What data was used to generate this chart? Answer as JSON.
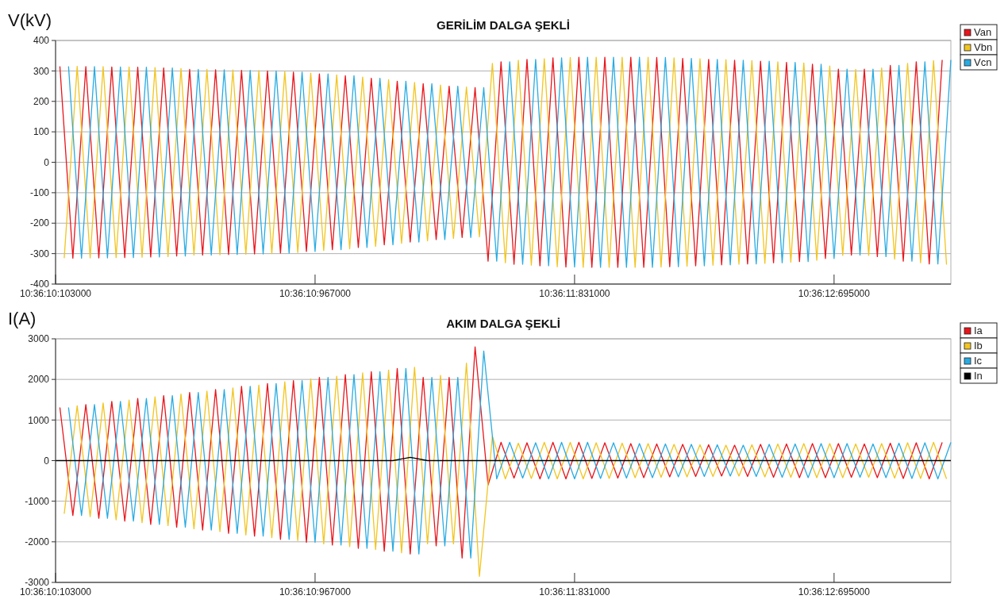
{
  "chart_data": [
    {
      "type": "line",
      "title": "GERİLİM DALGA ŞEKLİ",
      "ylabel": "V(kV)",
      "ylim": [
        -400,
        400
      ],
      "yticks": [
        -400,
        -300,
        -200,
        -100,
        0,
        100,
        200,
        300,
        400
      ],
      "grid": "y",
      "legend": "top right",
      "marker": "none",
      "line_style": "solid",
      "categories": [
        "10:36:10:103000",
        null,
        null,
        null,
        null,
        null,
        null,
        null,
        null,
        null,
        null,
        null,
        null,
        null,
        null,
        null,
        null,
        null,
        null,
        null,
        null,
        null,
        null,
        null,
        null,
        null,
        null,
        null,
        null,
        null,
        null,
        null,
        null,
        null,
        null,
        null,
        null,
        null,
        null,
        null,
        null,
        null,
        null,
        null,
        null,
        null,
        null,
        null,
        null,
        null,
        null,
        null,
        null,
        null,
        null,
        null,
        null,
        null,
        null,
        null,
        "10:36:10:967000",
        null,
        null,
        null,
        null,
        null,
        null,
        null,
        null,
        null,
        null,
        null,
        null,
        null,
        null,
        null,
        null,
        null,
        null,
        null,
        null,
        null,
        null,
        null,
        null,
        null,
        null,
        null,
        null,
        null,
        null,
        null,
        null,
        null,
        null,
        null,
        null,
        null,
        null,
        null,
        null,
        null,
        null,
        null,
        null,
        null,
        null,
        null,
        null,
        null,
        null,
        null,
        null,
        null,
        null,
        null,
        null,
        null,
        null,
        null,
        "10:36:11:831000",
        null,
        null,
        null,
        null,
        null,
        null,
        null,
        null,
        null,
        null,
        null,
        null,
        null,
        null,
        null,
        null,
        null,
        null,
        null,
        null,
        null,
        null,
        null,
        null,
        null,
        null,
        null,
        null,
        null,
        null,
        null,
        null,
        null,
        null,
        null,
        null,
        null,
        null,
        null,
        null,
        null,
        null,
        null,
        null,
        null,
        null,
        null,
        null,
        null,
        null,
        null,
        null,
        null,
        null,
        null,
        null,
        null,
        null,
        null,
        "10:36:12:695000",
        null,
        null,
        null,
        null,
        null,
        null,
        null,
        null,
        null,
        null,
        null,
        null,
        null,
        null,
        null,
        null,
        null,
        null,
        null,
        null,
        null,
        null,
        null,
        null,
        null,
        null,
        null
      ],
      "series": [
        {
          "name": "Van",
          "color": "#e8151b",
          "values": [
            null,
            315,
            null,
            null,
            -315,
            null,
            null,
            314,
            null,
            null,
            -314,
            null,
            null,
            313,
            null,
            null,
            -313,
            null,
            null,
            312,
            null,
            null,
            -311,
            null,
            null,
            310,
            null,
            null,
            -308,
            null,
            null,
            305,
            null,
            null,
            -305,
            null,
            null,
            304,
            null,
            null,
            -303,
            null,
            null,
            302,
            null,
            null,
            -301,
            null,
            null,
            300,
            null,
            null,
            -298,
            null,
            null,
            296,
            null,
            null,
            -293,
            null,
            null,
            290,
            null,
            null,
            -287,
            null,
            null,
            284,
            null,
            null,
            -280,
            null,
            null,
            276,
            null,
            null,
            -271,
            null,
            null,
            266,
            null,
            null,
            -262,
            null,
            null,
            258,
            null,
            null,
            -254,
            null,
            null,
            250,
            null,
            null,
            -247,
            null,
            null,
            245,
            null,
            null,
            -325,
            null,
            null,
            330,
            null,
            null,
            -335,
            null,
            null,
            338,
            null,
            null,
            -340,
            null,
            null,
            343,
            null,
            null,
            -344,
            null,
            null,
            345,
            null,
            null,
            -345,
            null,
            null,
            345,
            null,
            null,
            -345,
            null,
            null,
            345,
            null,
            null,
            -345,
            null,
            null,
            344,
            null,
            null,
            -343,
            null,
            null,
            341,
            null,
            null,
            -340,
            null,
            null,
            338,
            null,
            null,
            -337,
            null,
            null,
            335,
            null,
            null,
            -334,
            null,
            null,
            332,
            null,
            null,
            -330,
            null,
            null,
            328,
            null,
            null,
            -326,
            null,
            null,
            322,
            null,
            null,
            -316,
            null,
            null,
            306,
            null,
            null,
            -305,
            null,
            null,
            306,
            null,
            null,
            -310,
            null,
            null,
            318,
            null,
            null,
            -325,
            null,
            null,
            330,
            null,
            null,
            -334,
            null,
            null,
            336,
            null,
            null
          ]
        },
        {
          "name": "Vbn",
          "color": "#f2c521",
          "values": [
            null,
            null,
            -315,
            null,
            null,
            315,
            null,
            null,
            -314,
            null,
            null,
            314,
            null,
            null,
            -313,
            null,
            null,
            313,
            null,
            null,
            -312,
            null,
            null,
            311,
            null,
            null,
            -310,
            null,
            null,
            308,
            null,
            null,
            -305,
            null,
            null,
            305,
            null,
            null,
            -304,
            null,
            null,
            303,
            null,
            null,
            -302,
            null,
            null,
            301,
            null,
            null,
            -300,
            null,
            null,
            298,
            null,
            null,
            -296,
            null,
            null,
            293,
            null,
            null,
            -290,
            null,
            null,
            287,
            null,
            null,
            -284,
            null,
            null,
            280,
            null,
            null,
            -276,
            null,
            null,
            271,
            null,
            null,
            -266,
            null,
            null,
            262,
            null,
            null,
            -258,
            null,
            null,
            254,
            null,
            null,
            -250,
            null,
            null,
            247,
            null,
            null,
            -245,
            null,
            null,
            325,
            null,
            null,
            -330,
            null,
            null,
            335,
            null,
            null,
            -338,
            null,
            null,
            340,
            null,
            null,
            -343,
            null,
            null,
            344,
            null,
            null,
            -345,
            null,
            null,
            345,
            null,
            null,
            -345,
            null,
            null,
            345,
            null,
            null,
            -345,
            null,
            null,
            345,
            null,
            null,
            -344,
            null,
            null,
            343,
            null,
            null,
            -341,
            null,
            null,
            340,
            null,
            null,
            -338,
            null,
            null,
            337,
            null,
            null,
            -335,
            null,
            null,
            334,
            null,
            null,
            -332,
            null,
            null,
            330,
            null,
            null,
            -328,
            null,
            null,
            326,
            null,
            null,
            -322,
            null,
            null,
            316,
            null,
            null,
            -306,
            null,
            null,
            305,
            null,
            null,
            -306,
            null,
            null,
            310,
            null,
            null,
            -318,
            null,
            null,
            325,
            null,
            null,
            -330,
            null,
            null,
            334,
            null,
            null,
            -336,
            null
          ]
        },
        {
          "name": "Vcn",
          "color": "#29abe2",
          "values": [
            null,
            null,
            null,
            315,
            null,
            null,
            -315,
            null,
            null,
            314,
            null,
            null,
            -314,
            null,
            null,
            313,
            null,
            null,
            -313,
            null,
            null,
            312,
            null,
            null,
            -311,
            null,
            null,
            310,
            null,
            null,
            -308,
            null,
            null,
            305,
            null,
            null,
            -305,
            null,
            null,
            304,
            null,
            null,
            -303,
            null,
            null,
            302,
            null,
            null,
            -301,
            null,
            null,
            300,
            null,
            null,
            -298,
            null,
            null,
            296,
            null,
            null,
            -293,
            null,
            null,
            290,
            null,
            null,
            -287,
            null,
            null,
            284,
            null,
            null,
            -280,
            null,
            null,
            276,
            null,
            null,
            -271,
            null,
            null,
            266,
            null,
            null,
            -262,
            null,
            null,
            258,
            null,
            null,
            -254,
            null,
            null,
            250,
            null,
            null,
            -247,
            null,
            null,
            245,
            null,
            null,
            -325,
            null,
            null,
            330,
            null,
            null,
            -335,
            null,
            null,
            338,
            null,
            null,
            -340,
            null,
            null,
            343,
            null,
            null,
            -344,
            null,
            null,
            345,
            null,
            null,
            -345,
            null,
            null,
            345,
            null,
            null,
            -345,
            null,
            null,
            345,
            null,
            null,
            -345,
            null,
            null,
            344,
            null,
            null,
            -343,
            null,
            null,
            341,
            null,
            null,
            -340,
            null,
            null,
            338,
            null,
            null,
            -337,
            null,
            null,
            335,
            null,
            null,
            -334,
            null,
            null,
            332,
            null,
            null,
            -330,
            null,
            null,
            328,
            null,
            null,
            -326,
            null,
            null,
            322,
            null,
            null,
            -316,
            null,
            null,
            306,
            null,
            null,
            -305,
            null,
            null,
            306,
            null,
            null,
            -310,
            null,
            null,
            318,
            null,
            null,
            -325,
            null,
            null,
            330,
            null,
            null,
            -334,
            null,
            null,
            336
          ]
        }
      ]
    },
    {
      "type": "line",
      "title": "AKIM DALGA ŞEKLİ",
      "ylabel": "I(A)",
      "ylim": [
        -3000,
        3000
      ],
      "yticks": [
        -3000,
        -2000,
        -1000,
        0,
        1000,
        2000,
        3000
      ],
      "grid": "y",
      "legend": "top right",
      "marker": "none",
      "line_style": "solid",
      "categories": [
        "10:36:10:103000",
        null,
        null,
        null,
        null,
        null,
        null,
        null,
        null,
        null,
        null,
        null,
        null,
        null,
        null,
        null,
        null,
        null,
        null,
        null,
        null,
        null,
        null,
        null,
        null,
        null,
        null,
        null,
        null,
        null,
        null,
        null,
        null,
        null,
        null,
        null,
        null,
        null,
        null,
        null,
        null,
        null,
        null,
        null,
        null,
        null,
        null,
        null,
        null,
        null,
        null,
        null,
        null,
        null,
        null,
        null,
        null,
        null,
        null,
        null,
        "10:36:10:967000",
        null,
        null,
        null,
        null,
        null,
        null,
        null,
        null,
        null,
        null,
        null,
        null,
        null,
        null,
        null,
        null,
        null,
        null,
        null,
        null,
        null,
        null,
        null,
        null,
        null,
        null,
        null,
        null,
        null,
        null,
        null,
        null,
        null,
        null,
        null,
        null,
        null,
        null,
        null,
        null,
        null,
        null,
        null,
        null,
        null,
        null,
        null,
        null,
        null,
        null,
        null,
        null,
        null,
        null,
        null,
        null,
        null,
        null,
        null,
        "10:36:11:831000",
        null,
        null,
        null,
        null,
        null,
        null,
        null,
        null,
        null,
        null,
        null,
        null,
        null,
        null,
        null,
        null,
        null,
        null,
        null,
        null,
        null,
        null,
        null,
        null,
        null,
        null,
        null,
        null,
        null,
        null,
        null,
        null,
        null,
        null,
        null,
        null,
        null,
        null,
        null,
        null,
        null,
        null,
        null,
        null,
        null,
        null,
        null,
        null,
        null,
        null,
        null,
        null,
        null,
        null,
        null,
        null,
        null,
        null,
        null,
        "10:36:12:695000",
        null,
        null,
        null,
        null,
        null,
        null,
        null,
        null,
        null,
        null,
        null,
        null,
        null,
        null,
        null,
        null,
        null,
        null,
        null,
        null,
        null,
        null,
        null,
        null,
        null,
        null,
        null
      ],
      "series": [
        {
          "name": "Ia",
          "color": "#e8151b",
          "values": [
            null,
            1310,
            null,
            null,
            -1350,
            null,
            null,
            1380,
            null,
            null,
            -1420,
            null,
            null,
            1460,
            null,
            null,
            -1490,
            null,
            null,
            1530,
            null,
            null,
            -1570,
            null,
            null,
            1600,
            null,
            null,
            -1640,
            null,
            null,
            1680,
            null,
            null,
            -1710,
            null,
            null,
            1750,
            null,
            null,
            -1790,
            null,
            null,
            1830,
            null,
            null,
            -1860,
            null,
            null,
            1900,
            null,
            null,
            -1940,
            null,
            null,
            1970,
            null,
            null,
            -2010,
            null,
            null,
            2050,
            null,
            null,
            -2080,
            null,
            null,
            2120,
            null,
            null,
            -2160,
            null,
            null,
            2190,
            null,
            null,
            -2230,
            null,
            null,
            2270,
            null,
            null,
            -2300,
            null,
            null,
            2050,
            null,
            null,
            -2100,
            null,
            null,
            2050,
            null,
            null,
            -2400,
            null,
            null,
            2800,
            null,
            null,
            -600,
            null,
            null,
            450,
            null,
            null,
            -430,
            null,
            null,
            440,
            null,
            null,
            -450,
            null,
            null,
            450,
            null,
            null,
            -450,
            null,
            null,
            450,
            null,
            null,
            -440,
            null,
            null,
            440,
            null,
            null,
            -430,
            null,
            null,
            420,
            null,
            null,
            -420,
            null,
            null,
            410,
            null,
            null,
            -400,
            null,
            null,
            400,
            null,
            null,
            -390,
            null,
            null,
            390,
            null,
            null,
            -380,
            null,
            null,
            380,
            null,
            null,
            -390,
            null,
            null,
            400,
            null,
            null,
            -410,
            null,
            null,
            410,
            null,
            null,
            -420,
            null,
            null,
            420,
            null,
            null,
            -420,
            null,
            null,
            420,
            null,
            null,
            -410,
            null,
            null,
            410,
            null,
            null,
            -420,
            null,
            null,
            430,
            null,
            null,
            -440,
            null,
            null,
            440,
            null,
            null,
            -450,
            null,
            null,
            450,
            null,
            null
          ]
        },
        {
          "name": "Ib",
          "color": "#f2c521",
          "values": [
            null,
            null,
            -1310,
            null,
            null,
            1350,
            null,
            null,
            -1380,
            null,
            null,
            1420,
            null,
            null,
            -1460,
            null,
            null,
            1490,
            null,
            null,
            -1530,
            null,
            null,
            1570,
            null,
            null,
            -1600,
            null,
            null,
            1640,
            null,
            null,
            -1680,
            null,
            null,
            1710,
            null,
            null,
            -1750,
            null,
            null,
            1790,
            null,
            null,
            -1830,
            null,
            null,
            1860,
            null,
            null,
            -1900,
            null,
            null,
            1940,
            null,
            null,
            -1970,
            null,
            null,
            2010,
            null,
            null,
            -2050,
            null,
            null,
            2080,
            null,
            null,
            -2120,
            null,
            null,
            2160,
            null,
            null,
            -2190,
            null,
            null,
            2230,
            null,
            null,
            -2270,
            null,
            null,
            2300,
            null,
            null,
            -2050,
            null,
            null,
            2100,
            null,
            null,
            -2050,
            null,
            null,
            2400,
            null,
            null,
            -2850,
            null,
            null,
            600,
            null,
            null,
            -450,
            null,
            null,
            430,
            null,
            null,
            -440,
            null,
            null,
            450,
            null,
            null,
            -450,
            null,
            null,
            450,
            null,
            null,
            -450,
            null,
            null,
            440,
            null,
            null,
            -440,
            null,
            null,
            430,
            null,
            null,
            -420,
            null,
            null,
            420,
            null,
            null,
            -410,
            null,
            null,
            400,
            null,
            null,
            -400,
            null,
            null,
            390,
            null,
            null,
            -390,
            null,
            null,
            380,
            null,
            null,
            -380,
            null,
            null,
            390,
            null,
            null,
            -400,
            null,
            null,
            410,
            null,
            null,
            -410,
            null,
            null,
            420,
            null,
            null,
            -420,
            null,
            null,
            420,
            null,
            null,
            -420,
            null,
            null,
            410,
            null,
            null,
            -410,
            null,
            null,
            420,
            null,
            null,
            -430,
            null,
            null,
            440,
            null,
            null,
            -440,
            null,
            null,
            450,
            null,
            null,
            -450,
            null
          ]
        },
        {
          "name": "Ic",
          "color": "#29abe2",
          "values": [
            null,
            null,
            null,
            1310,
            null,
            null,
            -1350,
            null,
            null,
            1380,
            null,
            null,
            -1420,
            null,
            null,
            1460,
            null,
            null,
            -1490,
            null,
            null,
            1530,
            null,
            null,
            -1570,
            null,
            null,
            1600,
            null,
            null,
            -1640,
            null,
            null,
            1680,
            null,
            null,
            -1710,
            null,
            null,
            1750,
            null,
            null,
            -1790,
            null,
            null,
            1830,
            null,
            null,
            -1860,
            null,
            null,
            1900,
            null,
            null,
            -1940,
            null,
            null,
            1970,
            null,
            null,
            -2010,
            null,
            null,
            2050,
            null,
            null,
            -2080,
            null,
            null,
            2120,
            null,
            null,
            -2160,
            null,
            null,
            2190,
            null,
            null,
            -2230,
            null,
            null,
            2270,
            null,
            null,
            -2300,
            null,
            null,
            2050,
            null,
            null,
            -2100,
            null,
            null,
            2050,
            null,
            null,
            -2400,
            null,
            null,
            2700,
            null,
            null,
            -450,
            null,
            null,
            450,
            null,
            null,
            -430,
            null,
            null,
            440,
            null,
            null,
            -450,
            null,
            null,
            450,
            null,
            null,
            -450,
            null,
            null,
            450,
            null,
            null,
            -440,
            null,
            null,
            440,
            null,
            null,
            -430,
            null,
            null,
            420,
            null,
            null,
            -420,
            null,
            null,
            410,
            null,
            null,
            -400,
            null,
            null,
            400,
            null,
            null,
            -390,
            null,
            null,
            390,
            null,
            null,
            -380,
            null,
            null,
            380,
            null,
            null,
            -390,
            null,
            null,
            400,
            null,
            null,
            -410,
            null,
            null,
            410,
            null,
            null,
            -420,
            null,
            null,
            420,
            null,
            null,
            -420,
            null,
            null,
            420,
            null,
            null,
            -410,
            null,
            null,
            410,
            null,
            null,
            -420,
            null,
            null,
            430,
            null,
            null,
            -440,
            null,
            null,
            440,
            null,
            null,
            -450,
            null,
            null,
            450
          ]
        },
        {
          "name": "In",
          "color": "#000000",
          "values": [
            0,
            null,
            null,
            null,
            null,
            null,
            null,
            null,
            null,
            null,
            null,
            null,
            null,
            null,
            null,
            null,
            null,
            null,
            null,
            null,
            null,
            null,
            null,
            null,
            null,
            null,
            null,
            null,
            null,
            null,
            null,
            null,
            null,
            null,
            null,
            null,
            null,
            null,
            null,
            null,
            null,
            null,
            null,
            null,
            null,
            null,
            null,
            null,
            null,
            null,
            0,
            null,
            null,
            null,
            null,
            null,
            null,
            null,
            null,
            null,
            null,
            null,
            null,
            null,
            null,
            null,
            null,
            null,
            null,
            null,
            null,
            null,
            null,
            null,
            null,
            null,
            null,
            null,
            0,
            null,
            null,
            null,
            80,
            null,
            null,
            null,
            0,
            null,
            null,
            null,
            null,
            null,
            null,
            null,
            null,
            null,
            null,
            null,
            null,
            null,
            0,
            null,
            null,
            null,
            null,
            null,
            null,
            null,
            null,
            null,
            null,
            null,
            null,
            null,
            null,
            null,
            null,
            null,
            null,
            null,
            null,
            null,
            null,
            null,
            null,
            null,
            null,
            null,
            null,
            null,
            null,
            null,
            null,
            null,
            null,
            null,
            null,
            null,
            null,
            null,
            null,
            null,
            null,
            null,
            null,
            null,
            null,
            null,
            null,
            null,
            0,
            null,
            null,
            null,
            null,
            null,
            null,
            null,
            null,
            null,
            null,
            null,
            null,
            null,
            null,
            null,
            null,
            null,
            null,
            null,
            null,
            null,
            null,
            null,
            null,
            null,
            null,
            null,
            null,
            null,
            null,
            null,
            null,
            null,
            null,
            null,
            null,
            null,
            null,
            null,
            null,
            null,
            null,
            null,
            null,
            null,
            null,
            null,
            null,
            null,
            null,
            null,
            null,
            null,
            null,
            null,
            null,
            0
          ]
        }
      ]
    }
  ]
}
